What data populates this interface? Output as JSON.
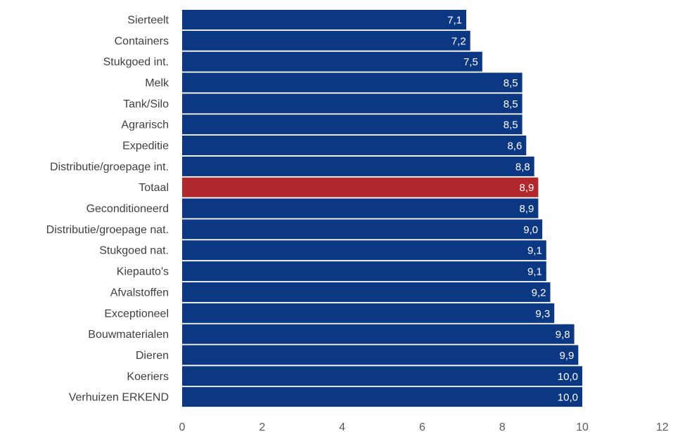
{
  "chart_data": {
    "type": "bar",
    "orientation": "horizontal",
    "categories": [
      "Sierteelt",
      "Containers",
      "Stukgoed int.",
      "Melk",
      "Tank/Silo",
      "Agrarisch",
      "Expeditie",
      "Distributie/groepage int.",
      "Totaal",
      "Geconditioneerd",
      "Distributie/groepage nat.",
      "Stukgoed nat.",
      "Kiepauto's",
      "Afvalstoffen",
      "Exceptioneel",
      "Bouwmaterialen",
      "Dieren",
      "Koeriers",
      "Verhuizen ERKEND"
    ],
    "values": [
      7.1,
      7.2,
      7.5,
      8.5,
      8.5,
      8.5,
      8.6,
      8.8,
      8.9,
      8.9,
      9.0,
      9.1,
      9.1,
      9.2,
      9.3,
      9.8,
      9.9,
      10.0,
      10.0
    ],
    "value_labels": [
      "7,1",
      "7,2",
      "7,5",
      "8,5",
      "8,5",
      "8,5",
      "8,6",
      "8,8",
      "8,9",
      "8,9",
      "9,0",
      "9,1",
      "9,1",
      "9,2",
      "9,3",
      "9,8",
      "9,9",
      "10,0",
      "10,0"
    ],
    "highlight": "Totaal",
    "xticks": [
      "0",
      "2",
      "4",
      "6",
      "8",
      "10",
      "12"
    ],
    "xlim": [
      0,
      12
    ],
    "grid": false,
    "legend": "none",
    "colors": {
      "bar": "#0c3783",
      "highlight": "#b0282b"
    }
  }
}
